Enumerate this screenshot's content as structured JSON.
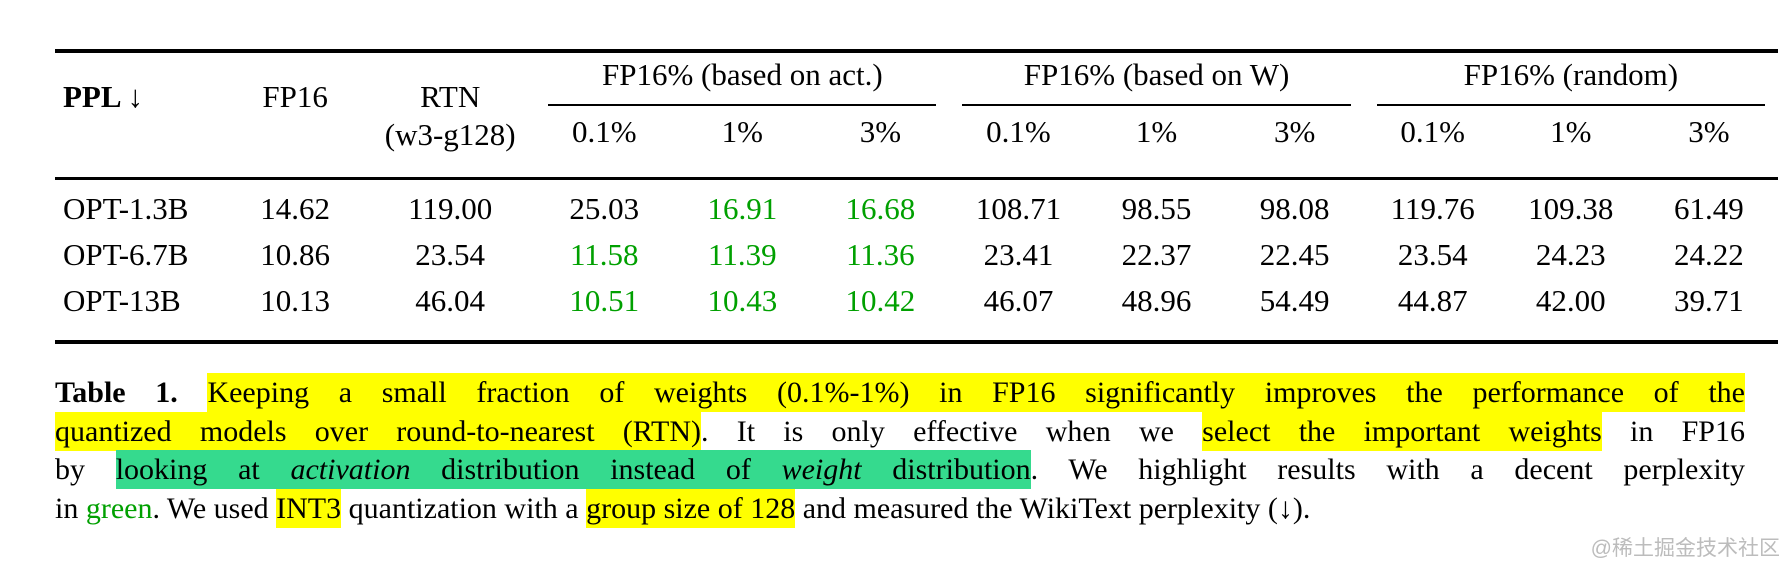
{
  "table": {
    "header": {
      "ppl": "PPL ↓",
      "fp16": "FP16",
      "rtn": "RTN",
      "rtn_sub": "(w3-g128)",
      "groups": [
        {
          "label": "FP16% (based on act.)",
          "subs": [
            "0.1%",
            "1%",
            "3%"
          ]
        },
        {
          "label": "FP16% (based on W)",
          "subs": [
            "0.1%",
            "1%",
            "3%"
          ]
        },
        {
          "label": "FP16% (random)",
          "subs": [
            "0.1%",
            "1%",
            "3%"
          ]
        }
      ]
    },
    "rows": [
      {
        "model": "OPT-1.3B",
        "cells": [
          "14.62",
          "119.00",
          "25.03",
          "16.91",
          "16.68",
          "108.71",
          "98.55",
          "98.08",
          "119.76",
          "109.38",
          "61.49"
        ],
        "green": [
          3,
          4
        ]
      },
      {
        "model": "OPT-6.7B",
        "cells": [
          "10.86",
          "23.54",
          "11.58",
          "11.39",
          "11.36",
          "23.41",
          "22.37",
          "22.45",
          "23.54",
          "24.23",
          "24.22"
        ],
        "green": [
          2,
          3,
          4
        ]
      },
      {
        "model": "OPT-13B",
        "cells": [
          "10.13",
          "46.04",
          "10.51",
          "10.43",
          "10.42",
          "46.07",
          "48.96",
          "54.49",
          "44.87",
          "42.00",
          "39.71"
        ],
        "green": [
          2,
          3,
          4
        ]
      }
    ]
  },
  "caption": {
    "l1": {
      "bold": "Table 1. ",
      "hl": "Keeping a small fraction of weights (0.1%-1%) in FP16 significantly improves the performance of the"
    },
    "l2": {
      "hl1": "quantized models over round-to-nearest (RTN)",
      "mid": ". It is only effective when we ",
      "hl2": "select the important weights",
      "end": " in FP16"
    },
    "l3": {
      "pre": "by ",
      "g1": "looking at ",
      "g2": "activation",
      "g3": " distribution instead of ",
      "g4": "weight",
      "g5": " distribution",
      "end": ". We highlight results with a decent perplexity"
    },
    "l4": {
      "pre": "in ",
      "green_word": "green",
      "mid1": ". We used ",
      "hl1": "INT3",
      "mid2": " quantization with a ",
      "hl2": "group size of 128",
      "end": " and measured the WikiText perplexity (↓)."
    }
  },
  "watermark": "@稀土掘金技术社区",
  "colors": {
    "green_text": "#00A000",
    "yellow_highlight": "#FFFF00",
    "green_highlight": "#35DA8E"
  }
}
